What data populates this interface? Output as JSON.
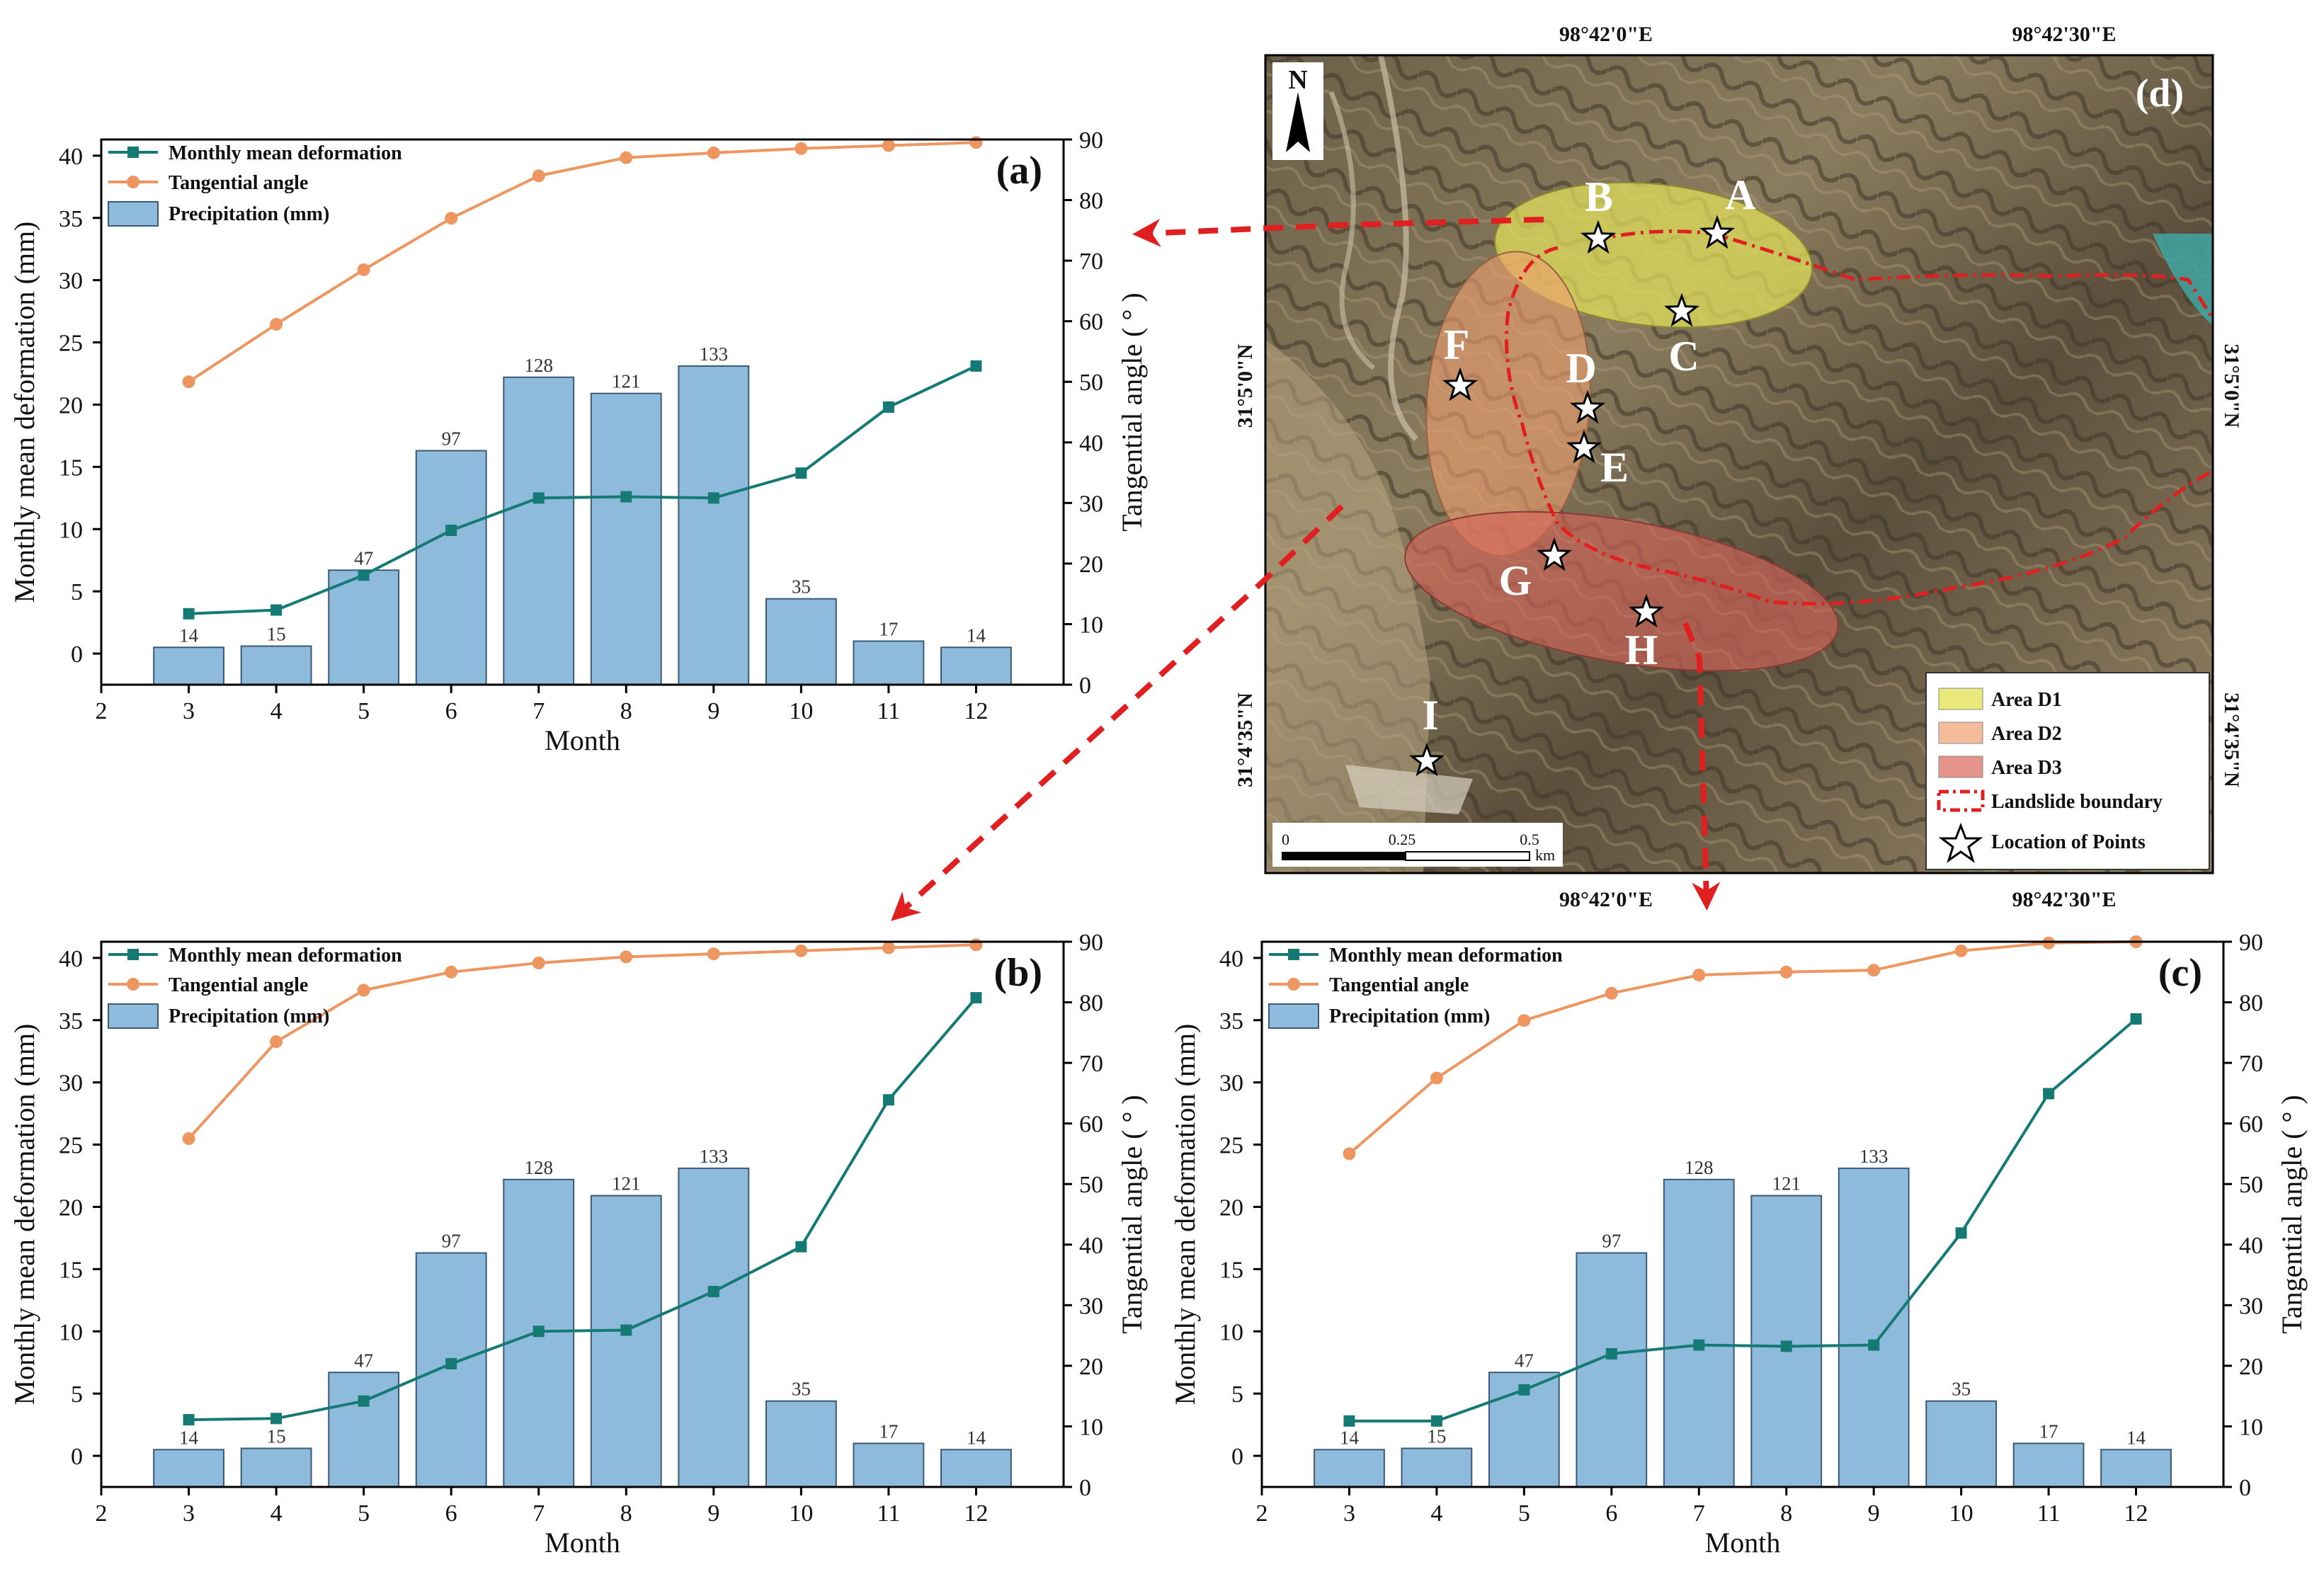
{
  "figure": {
    "map": {
      "panel_tag": "(d)",
      "north_label": "N",
      "coords": {
        "top_left": "98°42'0\"E",
        "top_right": "98°42'30\"E",
        "bottom_left": "98°42'0\"E",
        "bottom_right": "98°42'30\"E",
        "left_top": "31°5'0\"N",
        "left_bottom": "31°4'35\"N",
        "right_top": "31°5'0\"N",
        "right_bottom": "31°4'35\"N"
      },
      "points": [
        "A",
        "B",
        "C",
        "D",
        "E",
        "F",
        "G",
        "H",
        "I"
      ],
      "scale": {
        "t0": "0",
        "t1": "0.25",
        "t2": "0.5",
        "unit": "km"
      },
      "legend": {
        "d1": "Area D1",
        "d2": "Area D2",
        "d3": "Area D3",
        "boundary": "Landslide boundary",
        "points": "Location of Points"
      },
      "colors": {
        "d1": "#e3e35a",
        "d2": "#f0a070",
        "d3": "#d8655a",
        "boundary": "#e02020",
        "arrow": "#e02020"
      }
    }
  },
  "chart_data": [
    {
      "type": "bar",
      "panel_tag": "(a)",
      "categories": [
        3,
        4,
        5,
        6,
        7,
        8,
        9,
        10,
        11,
        12
      ],
      "xlabel": "Month",
      "ylabel": "Monthly mean deformation (mm)",
      "y2label": "Tangential angle ( ° )",
      "xlim": [
        2,
        13
      ],
      "ylim": [
        -2.5,
        41.3
      ],
      "y2lim": [
        0,
        90
      ],
      "x_ticks": [
        2,
        3,
        4,
        5,
        6,
        7,
        8,
        9,
        10,
        11,
        12
      ],
      "y_ticks": [
        0,
        5,
        10,
        15,
        20,
        25,
        30,
        35,
        40
      ],
      "y2_ticks": [
        0,
        10,
        20,
        30,
        40,
        50,
        60,
        70,
        80,
        90
      ],
      "legend": [
        "Monthly mean deformation",
        "Tangential angle",
        "Precipitation (mm)"
      ],
      "series": [
        {
          "name": "Precipitation (mm)",
          "kind": "bar",
          "axis": "left",
          "color": "#8ebbdc",
          "values": [
            0.5,
            0.6,
            6.7,
            16.3,
            22.2,
            20.9,
            23.1,
            4.4,
            1.0,
            0.5
          ],
          "labels": [
            "14",
            "15",
            "47",
            "97",
            "128",
            "121",
            "133",
            "35",
            "17",
            "14"
          ]
        },
        {
          "name": "Monthly mean deformation",
          "kind": "line",
          "axis": "left",
          "color": "#167a74",
          "values": [
            3.2,
            3.5,
            6.3,
            9.9,
            12.5,
            12.6,
            12.5,
            14.5,
            19.8,
            23.1
          ]
        },
        {
          "name": "Tangential angle",
          "kind": "line",
          "axis": "right",
          "color": "#ee9660",
          "values": [
            50,
            59.5,
            68.5,
            77,
            84,
            87,
            87.8,
            88.5,
            89,
            89.5
          ]
        }
      ]
    },
    {
      "type": "bar",
      "panel_tag": "(b)",
      "categories": [
        3,
        4,
        5,
        6,
        7,
        8,
        9,
        10,
        11,
        12
      ],
      "xlabel": "Month",
      "ylabel": "Monthly mean deformation (mm)",
      "y2label": "Tangential angle ( ° )",
      "xlim": [
        2,
        13
      ],
      "ylim": [
        -2.5,
        41.3
      ],
      "y2lim": [
        0,
        90
      ],
      "x_ticks": [
        2,
        3,
        4,
        5,
        6,
        7,
        8,
        9,
        10,
        11,
        12
      ],
      "y_ticks": [
        0,
        5,
        10,
        15,
        20,
        25,
        30,
        35,
        40
      ],
      "y2_ticks": [
        0,
        10,
        20,
        30,
        40,
        50,
        60,
        70,
        80,
        90
      ],
      "legend": [
        "Monthly mean deformation",
        "Tangential angle",
        "Precipitation (mm)"
      ],
      "series": [
        {
          "name": "Precipitation (mm)",
          "kind": "bar",
          "axis": "left",
          "color": "#8ebbdc",
          "values": [
            0.5,
            0.6,
            6.7,
            16.3,
            22.2,
            20.9,
            23.1,
            4.4,
            1.0,
            0.5
          ],
          "labels": [
            "14",
            "15",
            "47",
            "97",
            "128",
            "121",
            "133",
            "35",
            "17",
            "14"
          ]
        },
        {
          "name": "Monthly mean deformation",
          "kind": "line",
          "axis": "left",
          "color": "#167a74",
          "values": [
            2.9,
            3.0,
            4.4,
            7.4,
            10.0,
            10.1,
            13.2,
            16.8,
            28.6,
            36.8
          ]
        },
        {
          "name": "Tangential angle",
          "kind": "line",
          "axis": "right",
          "color": "#ee9660",
          "values": [
            57.5,
            73.5,
            82,
            85,
            86.5,
            87.5,
            88,
            88.5,
            89,
            89.5
          ]
        }
      ]
    },
    {
      "type": "bar",
      "panel_tag": "(c)",
      "categories": [
        3,
        4,
        5,
        6,
        7,
        8,
        9,
        10,
        11,
        12
      ],
      "xlabel": "Month",
      "ylabel": "Monthly mean deformation (mm)",
      "y2label": "Tangential angle ( ° )",
      "xlim": [
        2,
        13
      ],
      "ylim": [
        -2.5,
        41.3
      ],
      "y2lim": [
        0,
        90
      ],
      "x_ticks": [
        2,
        3,
        4,
        5,
        6,
        7,
        8,
        9,
        10,
        11,
        12
      ],
      "y_ticks": [
        0,
        5,
        10,
        15,
        20,
        25,
        30,
        35,
        40
      ],
      "y2_ticks": [
        0,
        10,
        20,
        30,
        40,
        50,
        60,
        70,
        80,
        90
      ],
      "legend": [
        "Monthly mean deformation",
        "Tangential angle",
        "Precipitation (mm)"
      ],
      "series": [
        {
          "name": "Precipitation (mm)",
          "kind": "bar",
          "axis": "left",
          "color": "#8ebbdc",
          "values": [
            0.5,
            0.6,
            6.7,
            16.3,
            22.2,
            20.9,
            23.1,
            4.4,
            1.0,
            0.5
          ],
          "labels": [
            "14",
            "15",
            "47",
            "97",
            "128",
            "121",
            "133",
            "35",
            "17",
            "14"
          ]
        },
        {
          "name": "Monthly mean deformation",
          "kind": "line",
          "axis": "left",
          "color": "#167a74",
          "values": [
            2.8,
            2.8,
            5.3,
            8.2,
            8.9,
            8.8,
            8.9,
            17.9,
            29.1,
            35.1
          ]
        },
        {
          "name": "Tangential angle",
          "kind": "line",
          "axis": "right",
          "color": "#ee9660",
          "values": [
            55,
            67.5,
            77,
            81.5,
            84.5,
            85,
            85.3,
            88.5,
            89.8,
            90
          ]
        }
      ]
    }
  ]
}
